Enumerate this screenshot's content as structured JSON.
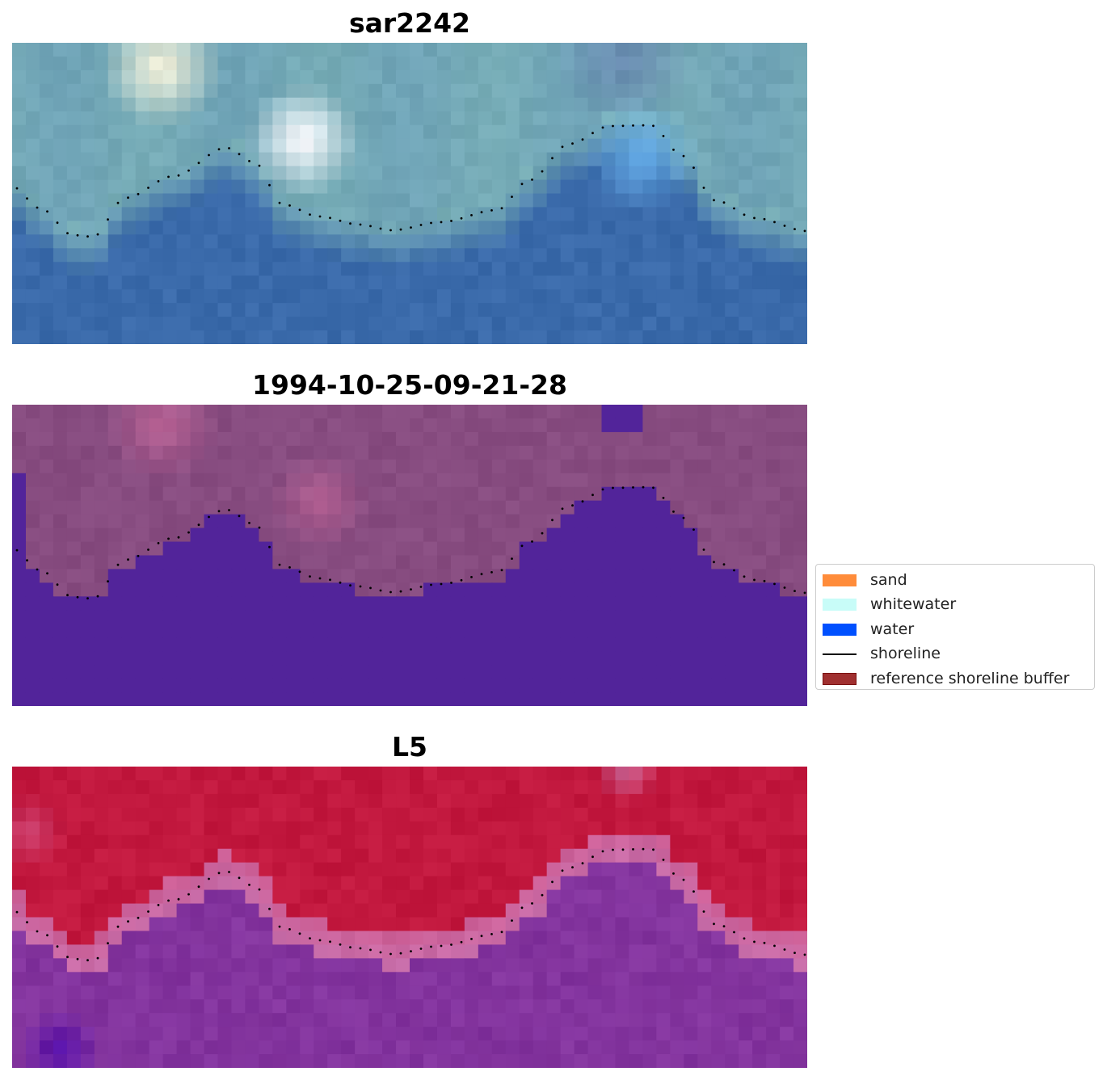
{
  "panels": [
    {
      "id": "rgb",
      "title": "sar2242",
      "image": "rgb-composite"
    },
    {
      "id": "classified",
      "title": "1994-10-25-09-21-28",
      "image": "classified-mndwi-overlay"
    },
    {
      "id": "index",
      "title": "L5",
      "image": "water-index-colormap"
    }
  ],
  "legend": {
    "placement": "right",
    "items": [
      {
        "label": "sand",
        "color": "#ff8c3a",
        "kind": "patch"
      },
      {
        "label": "whitewater",
        "color": "#c8fcf8",
        "kind": "patch"
      },
      {
        "label": "water",
        "color": "#0050ff",
        "kind": "patch"
      },
      {
        "label": "shoreline",
        "color": "#000000",
        "kind": "line"
      },
      {
        "label": "reference shoreline buffer",
        "color": "#a03030",
        "kind": "patch"
      }
    ]
  },
  "colors": {
    "rgb_land": "#78aeb6",
    "rgb_water": "#3a6aaa",
    "classified_land": "#874c80",
    "classified_water": "#52249a",
    "index_land": "#c2183e",
    "index_water": "#7d2e9a"
  }
}
